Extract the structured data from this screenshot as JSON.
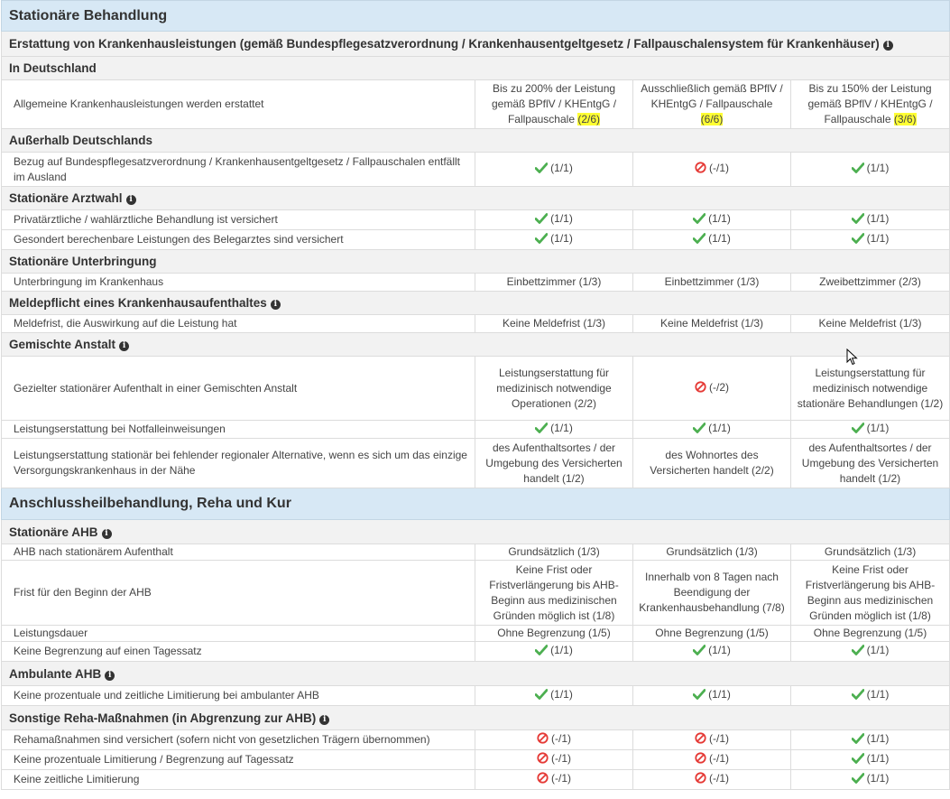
{
  "colors": {
    "check": "#4caf50",
    "no": "#e53935",
    "section_bg": "#d7e8f5",
    "sub_bg": "#f2f2f2",
    "highlight": "#ffff33"
  },
  "icons": {
    "yes": "check-icon",
    "no": "prohibited-icon",
    "info": "info-icon"
  },
  "sections": [
    {
      "title": "Stationäre Behandlung"
    },
    {
      "title": "Anschlussheilbehandlung, Reha und Kur"
    }
  ],
  "subs": [
    "Erstattung von Krankenhausleistungen (gemäß Bundespflegesatzverordnung / Krankenhausentgeltgesetz / Fallpauschalensystem für Krankenhäuser)",
    "In Deutschland",
    "Außerhalb Deutschlands",
    "Stationäre Arztwahl",
    "Stationäre Unterbringung",
    "Meldepflicht eines Krankenhausaufenthaltes",
    "Gemischte Anstalt",
    "Stationäre AHB",
    "Ambulante AHB",
    "Sonstige Reha-Maßnahmen (in Abgrenzung zur AHB)"
  ],
  "labels": [
    "Allgemeine Krankenhausleistungen werden erstattet",
    "Bezug auf Bundespflegesatzverordnung / Krankenhausentgeltgesetz / Fallpauschalen entfällt im Ausland",
    "Privatärztliche / wahlärztliche Behandlung ist versichert",
    "Gesondert berechenbare Leistungen des Belegarztes sind versichert",
    "Unterbringung im Krankenhaus",
    "Meldefrist, die Auswirkung auf die Leistung hat",
    "Gezielter stationärer Aufenthalt in einer Gemischten Anstalt",
    "Leistungserstattung bei Notfalleinweisungen",
    "Leistungserstattung stationär bei fehlender regionaler Alternative, wenn es sich um das einzige Versorgungskrankenhaus in der Nähe",
    "AHB nach stationärem Aufenthalt",
    "Frist für den Beginn der AHB",
    "Leistungsdauer",
    "Keine Begrenzung auf einen Tagessatz",
    "Keine prozentuale und zeitliche Limitierung bei ambulanter AHB",
    "Rehamaßnahmen sind versichert (sofern nicht von gesetzlichen Trägern übernommen)",
    "Keine prozentuale Limitierung / Begrenzung auf Tagessatz",
    "Keine zeitliche Limitierung"
  ],
  "v": {
    "r0c1": "Bis zu 200% der Leistung gemäß BPflV / KHEntgG / Fallpauschale",
    "r0c1s": "(2/6)",
    "r0c2": "Ausschließlich gemäß BPflV / KHEntgG / Fallpauschale",
    "r0c2s": "(6/6)",
    "r0c3": "Bis zu 150% der Leistung gemäß BPflV / KHEntgG / Fallpauschale",
    "r0c3s": "(3/6)",
    "s11": "(1/1)",
    "s1m": "(-/1)",
    "s12": "(-/2)",
    "einbett": "Einbettzimmer (1/3)",
    "zweibett": "Zweibettzimmer (2/3)",
    "melde": "Keine Meldefrist (1/3)",
    "ga1": "Leistungserstattung für medizinisch notwendige Operationen (2/2)",
    "ga3": "Leistungserstattung für medizinisch notwendige stationäre Behandlungen (1/2)",
    "reg1": "des Aufenthaltsortes / der Umgebung des Versicherten handelt (1/2)",
    "reg2": "des Wohnortes des Versicherten handelt (2/2)",
    "grund": "Grundsätzlich (1/3)",
    "frist1": "Keine Frist oder Fristverlängerung bis AHB-Beginn aus medizinischen Gründen möglich ist (1/8)",
    "frist2": "Innerhalb von 8 Tagen nach Beendigung der Krankenhausbehandlung (7/8)",
    "dauer": "Ohne Begrenzung (1/5)"
  }
}
